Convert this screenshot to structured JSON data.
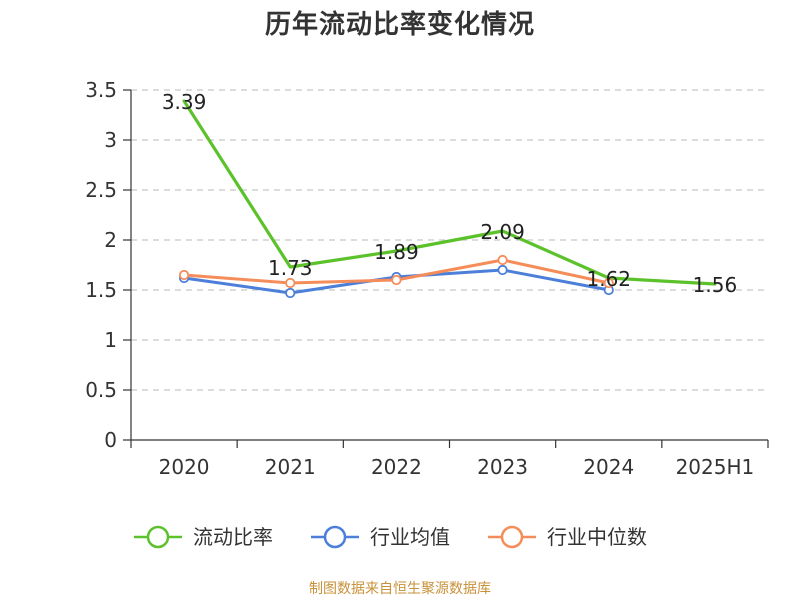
{
  "title": "历年流动比率变化情况",
  "source": "制图数据来自恒生聚源数据库",
  "chart_data": {
    "type": "line",
    "title": "历年流动比率变化情况",
    "categories": [
      "2020",
      "2021",
      "2022",
      "2023",
      "2024",
      "2025H1"
    ],
    "ylim": [
      0,
      3.5
    ],
    "yticks": [
      "0",
      "0.5",
      "1",
      "1.5",
      "2",
      "2.5",
      "3",
      "3.5"
    ],
    "grid": true,
    "legend_position": "bottom",
    "series": [
      {
        "name": "流动比率",
        "color": "#5cc22b",
        "values": [
          3.39,
          1.73,
          1.89,
          2.09,
          1.62,
          1.56
        ],
        "labels": [
          "3.39",
          "1.73",
          "1.89",
          "2.09",
          "1.62",
          "1.56"
        ],
        "show_labels": true
      },
      {
        "name": "行业均值",
        "color": "#4c7fd9",
        "values": [
          1.62,
          1.47,
          1.63,
          1.7,
          1.5,
          null
        ],
        "show_labels": false
      },
      {
        "name": "行业中位数",
        "color": "#f58d5a",
        "values": [
          1.65,
          1.57,
          1.6,
          1.8,
          1.57,
          null
        ],
        "show_labels": false
      }
    ]
  }
}
